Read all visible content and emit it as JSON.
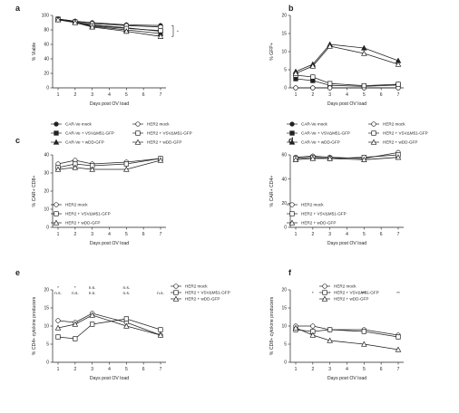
{
  "panels": [
    {
      "id": "a",
      "letter": "a",
      "type": "line",
      "ylabel": "% Viable",
      "xlabel": "",
      "ylim": [
        0,
        100
      ],
      "yticks": [
        0,
        20,
        40,
        60,
        80,
        100
      ],
      "x": [
        1,
        2,
        3,
        5,
        7
      ],
      "xticks": [
        "1",
        "2",
        "3",
        "4",
        "5",
        "6",
        "7"
      ],
      "series": [
        {
          "name": "CAR-Ve mock",
          "marker": "circle",
          "fill": "#222222",
          "values": [
            95,
            92,
            90,
            87,
            86
          ]
        },
        {
          "name": "CAR-Ve + VSVΔM51-GFP",
          "marker": "square",
          "fill": "#222222",
          "values": [
            95,
            91,
            87,
            83,
            78
          ]
        },
        {
          "name": "CAR-Ve + wDD-GFP",
          "marker": "triangle",
          "fill": "#222222",
          "values": [
            94,
            91,
            85,
            80,
            75
          ]
        },
        {
          "name": "HER2 mock",
          "marker": "circle",
          "fill": "#ffffff",
          "values": [
            95,
            92,
            89,
            86,
            84
          ]
        },
        {
          "name": "HER2 + VSVΔM51-GFP",
          "marker": "square",
          "fill": "#ffffff",
          "values": [
            94,
            91,
            86,
            82,
            79
          ]
        },
        {
          "name": "HER2 + wDD-GFP",
          "marker": "triangle",
          "fill": "#ffffff",
          "values": [
            94,
            90,
            84,
            78,
            71
          ]
        }
      ],
      "annotations": [
        "*"
      ],
      "legend_cols": 2
    },
    {
      "id": "b",
      "letter": "b",
      "type": "line",
      "ylabel": "% GFP+",
      "xlabel": "",
      "ylim": [
        0,
        20
      ],
      "yticks": [
        0,
        5,
        10,
        15,
        20
      ],
      "x": [
        1,
        2,
        3,
        5,
        7
      ],
      "xticks": [
        "1",
        "2",
        "3",
        "4",
        "5",
        "6",
        "7"
      ],
      "series": [
        {
          "name": "CAR-Ve mock",
          "marker": "circle",
          "fill": "#222222",
          "values": [
            0,
            0,
            0,
            0,
            0
          ]
        },
        {
          "name": "CAR-Ve + VSVΔM51-GFP",
          "marker": "square",
          "fill": "#222222",
          "values": [
            2.5,
            2,
            0.7,
            0.4,
            0.8
          ]
        },
        {
          "name": "CAR-Ve + wDD-GFP",
          "marker": "triangle",
          "fill": "#222222",
          "values": [
            4.5,
            6.5,
            12,
            11,
            7.5
          ]
        },
        {
          "name": "HER2 mock",
          "marker": "circle",
          "fill": "#ffffff",
          "values": [
            0,
            0,
            0,
            0,
            0
          ]
        },
        {
          "name": "HER2 + VSVΔM51-GFP",
          "marker": "square",
          "fill": "#ffffff",
          "values": [
            3.5,
            3,
            1.2,
            0.6,
            1
          ]
        },
        {
          "name": "HER2 + wDD-GFP",
          "marker": "triangle",
          "fill": "#ffffff",
          "values": [
            4,
            6,
            11.5,
            9.5,
            6.5
          ]
        }
      ],
      "annotations": [],
      "legend_cols": 2
    },
    {
      "id": "c",
      "letter": "c",
      "type": "line",
      "ylabel": "% CAR+ CD8+",
      "xlabel": "",
      "ylim": [
        0,
        40
      ],
      "yticks": [
        0,
        10,
        20,
        30,
        40
      ],
      "x": [
        1,
        2,
        3,
        5,
        7
      ],
      "xticks": [
        "1",
        "2",
        "3",
        "4",
        "5",
        "6",
        "7"
      ],
      "series": [
        {
          "name": "HER2 mock",
          "marker": "circle",
          "fill": "#ffffff",
          "values": [
            35,
            37,
            35,
            36,
            38
          ]
        },
        {
          "name": "HER2 + VSVΔM51-GFP",
          "marker": "square",
          "fill": "#ffffff",
          "values": [
            33,
            35,
            34,
            35,
            38
          ]
        },
        {
          "name": "HER2 + wDD-GFP",
          "marker": "triangle",
          "fill": "#ffffff",
          "values": [
            32,
            33,
            32,
            32,
            37
          ]
        }
      ],
      "annotations": [],
      "legend_cols": 1
    },
    {
      "id": "d",
      "letter": "d",
      "type": "line",
      "ylabel": "% CAR+ CD4+",
      "xlabel": "",
      "ylim": [
        0,
        60
      ],
      "yticks": [
        0,
        20,
        40,
        60
      ],
      "x": [
        1,
        2,
        3,
        5,
        7
      ],
      "xticks": [
        "1",
        "2",
        "3",
        "4",
        "5",
        "6",
        "7"
      ],
      "series": [
        {
          "name": "HER2 mock",
          "marker": "circle",
          "fill": "#ffffff",
          "values": [
            58,
            59,
            58,
            57,
            62
          ]
        },
        {
          "name": "HER2 + VSVΔM51-GFP",
          "marker": "square",
          "fill": "#ffffff",
          "values": [
            57,
            58,
            57,
            58,
            60
          ]
        },
        {
          "name": "HER2 + wDD-GFP",
          "marker": "triangle",
          "fill": "#ffffff",
          "values": [
            56,
            57,
            57,
            56,
            58
          ]
        }
      ],
      "annotations": [],
      "legend_cols": 1
    },
    {
      "id": "e",
      "letter": "e",
      "type": "line",
      "ylabel": "% CD4+ cytokine producers",
      "xlabel": "",
      "ylim": [
        0,
        20
      ],
      "yticks": [
        0,
        5,
        10,
        15,
        20
      ],
      "x": [
        1,
        2,
        3,
        5,
        7
      ],
      "xticks": [
        "1",
        "2",
        "3",
        "4",
        "5",
        "6",
        "7"
      ],
      "series": [
        {
          "name": "HER2 mock",
          "marker": "circle",
          "fill": "#ffffff",
          "values": [
            11.5,
            11,
            13.5,
            11,
            7.5
          ]
        },
        {
          "name": "HER2 + VSVΔM51-GFP",
          "marker": "square",
          "fill": "#ffffff",
          "values": [
            7,
            6.5,
            10.5,
            12,
            9
          ]
        },
        {
          "name": "HER2 + wDD-GFP",
          "marker": "triangle",
          "fill": "#ffffff",
          "values": [
            9.5,
            10.5,
            13,
            10,
            7.5
          ]
        }
      ],
      "annotations": [
        "*",
        "*",
        "n.s.",
        "n.s.",
        "n.s.",
        "n.s.",
        "n.s.",
        "n.s.",
        "n.s."
      ],
      "legend_cols": 1
    },
    {
      "id": "f",
      "letter": "f",
      "type": "line",
      "ylabel": "% CD8+ cytokine producers",
      "xlabel": "",
      "ylim": [
        0,
        20
      ],
      "yticks": [
        0,
        5,
        10,
        15,
        20
      ],
      "x": [
        1,
        2,
        3,
        5,
        7
      ],
      "xticks": [
        "1",
        "2",
        "3",
        "4",
        "5",
        "6",
        "7"
      ],
      "series": [
        {
          "name": "HER2 mock",
          "marker": "circle",
          "fill": "#ffffff",
          "values": [
            10,
            10,
            9,
            9,
            7.5
          ]
        },
        {
          "name": "HER2 + VSVΔM51-GFP",
          "marker": "square",
          "fill": "#ffffff",
          "values": [
            9,
            8.5,
            9,
            8.5,
            7
          ]
        },
        {
          "name": "HER2 + wDD-GFP",
          "marker": "triangle",
          "fill": "#ffffff",
          "values": [
            9.5,
            7.5,
            6,
            5,
            3.5
          ]
        }
      ],
      "annotations": [
        "*",
        "*",
        "***",
        "**"
      ],
      "legend_cols": 1
    }
  ],
  "shared_xlabel": "Days post OV load",
  "chart_data": [
    {
      "type": "line",
      "panel": "a",
      "ylabel": "% Viable",
      "xlabel": "Days post OV load",
      "x": [
        1,
        2,
        3,
        5,
        7
      ],
      "ylim": [
        0,
        100
      ],
      "series": [
        {
          "name": "CAR-Ve mock",
          "values": [
            95,
            92,
            90,
            87,
            86
          ]
        },
        {
          "name": "CAR-Ve + VSVΔM51-GFP",
          "values": [
            95,
            91,
            87,
            83,
            78
          ]
        },
        {
          "name": "CAR-Ve + wDD-GFP",
          "values": [
            94,
            91,
            85,
            80,
            75
          ]
        },
        {
          "name": "HER2 mock",
          "values": [
            95,
            92,
            89,
            86,
            84
          ]
        },
        {
          "name": "HER2 + VSVΔM51-GFP",
          "values": [
            94,
            91,
            86,
            82,
            79
          ]
        },
        {
          "name": "HER2 + wDD-GFP",
          "values": [
            94,
            90,
            84,
            78,
            71
          ]
        }
      ]
    },
    {
      "type": "line",
      "panel": "b",
      "ylabel": "% GFP+",
      "xlabel": "Days post OV load",
      "x": [
        1,
        2,
        3,
        5,
        7
      ],
      "ylim": [
        0,
        20
      ],
      "series": [
        {
          "name": "CAR-Ve mock",
          "values": [
            0,
            0,
            0,
            0,
            0
          ]
        },
        {
          "name": "CAR-Ve + VSVΔM51-GFP",
          "values": [
            2.5,
            2,
            0.7,
            0.4,
            0.8
          ]
        },
        {
          "name": "CAR-Ve + wDD-GFP",
          "values": [
            4.5,
            6.5,
            12,
            11,
            7.5
          ]
        },
        {
          "name": "HER2 mock",
          "values": [
            0,
            0,
            0,
            0,
            0
          ]
        },
        {
          "name": "HER2 + VSVΔM51-GFP",
          "values": [
            3.5,
            3,
            1.2,
            0.6,
            1
          ]
        },
        {
          "name": "HER2 + wDD-GFP",
          "values": [
            4,
            6,
            11.5,
            9.5,
            6.5
          ]
        }
      ]
    },
    {
      "type": "line",
      "panel": "c",
      "ylabel": "% CAR+ CD8+",
      "xlabel": "Days post OV load",
      "x": [
        1,
        2,
        3,
        5,
        7
      ],
      "ylim": [
        0,
        40
      ],
      "series": [
        {
          "name": "HER2 mock",
          "values": [
            35,
            37,
            35,
            36,
            38
          ]
        },
        {
          "name": "HER2 + VSVΔM51-GFP",
          "values": [
            33,
            35,
            34,
            35,
            38
          ]
        },
        {
          "name": "HER2 + wDD-GFP",
          "values": [
            32,
            33,
            32,
            32,
            37
          ]
        }
      ]
    },
    {
      "type": "line",
      "panel": "d",
      "ylabel": "% CAR+ CD4+",
      "xlabel": "Days post OV load",
      "x": [
        1,
        2,
        3,
        5,
        7
      ],
      "ylim": [
        0,
        60
      ],
      "series": [
        {
          "name": "HER2 mock",
          "values": [
            58,
            59,
            58,
            57,
            62
          ]
        },
        {
          "name": "HER2 + VSVΔM51-GFP",
          "values": [
            57,
            58,
            57,
            58,
            60
          ]
        },
        {
          "name": "HER2 + wDD-GFP",
          "values": [
            56,
            57,
            57,
            56,
            58
          ]
        }
      ]
    },
    {
      "type": "line",
      "panel": "e",
      "ylabel": "% CD4+ cytokine producers",
      "xlabel": "Days post OV load",
      "x": [
        1,
        2,
        3,
        5,
        7
      ],
      "ylim": [
        0,
        20
      ],
      "series": [
        {
          "name": "HER2 mock",
          "values": [
            11.5,
            11,
            13.5,
            11,
            7.5
          ]
        },
        {
          "name": "HER2 + VSVΔM51-GFP",
          "values": [
            7,
            6.5,
            10.5,
            12,
            9
          ]
        },
        {
          "name": "HER2 + wDD-GFP",
          "values": [
            9.5,
            10.5,
            13,
            10,
            7.5
          ]
        }
      ]
    },
    {
      "type": "line",
      "panel": "f",
      "ylabel": "% CD8+ cytokine producers",
      "xlabel": "Days post OV load",
      "x": [
        1,
        2,
        3,
        5,
        7
      ],
      "ylim": [
        0,
        20
      ],
      "series": [
        {
          "name": "HER2 mock",
          "values": [
            10,
            10,
            9,
            9,
            7.5
          ]
        },
        {
          "name": "HER2 + VSVΔM51-GFP",
          "values": [
            9,
            8.5,
            9,
            8.5,
            7
          ]
        },
        {
          "name": "HER2 + wDD-GFP",
          "values": [
            9.5,
            7.5,
            6,
            5,
            3.5
          ]
        }
      ]
    }
  ]
}
